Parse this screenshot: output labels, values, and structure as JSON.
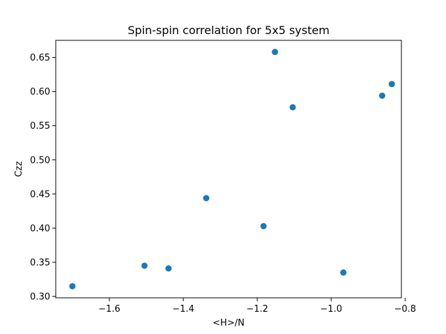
{
  "chart_data": {
    "type": "scatter",
    "title": "Spin-spin correlation for 5x5 system",
    "xlabel": "<H>/N",
    "ylabel": "Czz",
    "xlim": [
      -1.745,
      -0.81
    ],
    "ylim": [
      0.298,
      0.675
    ],
    "xticks": [
      -1.6,
      -1.4,
      -1.2,
      -1.0,
      -0.8
    ],
    "xtick_labels": [
      "−1.6",
      "−1.4",
      "−1.2",
      "−1.0",
      "−0.8"
    ],
    "yticks": [
      0.3,
      0.35,
      0.4,
      0.45,
      0.5,
      0.55,
      0.6,
      0.65
    ],
    "ytick_labels": [
      "0.30",
      "0.35",
      "0.40",
      "0.45",
      "0.50",
      "0.55",
      "0.60",
      "0.65"
    ],
    "grid": false,
    "marker_color": "#1f77b4",
    "points": [
      {
        "x": -1.7,
        "y": 0.315
      },
      {
        "x": -1.505,
        "y": 0.345
      },
      {
        "x": -1.44,
        "y": 0.341
      },
      {
        "x": -1.338,
        "y": 0.444
      },
      {
        "x": -1.183,
        "y": 0.403
      },
      {
        "x": -1.152,
        "y": 0.658
      },
      {
        "x": -1.104,
        "y": 0.577
      },
      {
        "x": -0.967,
        "y": 0.335
      },
      {
        "x": -0.862,
        "y": 0.594
      },
      {
        "x": -0.836,
        "y": 0.611
      }
    ]
  }
}
